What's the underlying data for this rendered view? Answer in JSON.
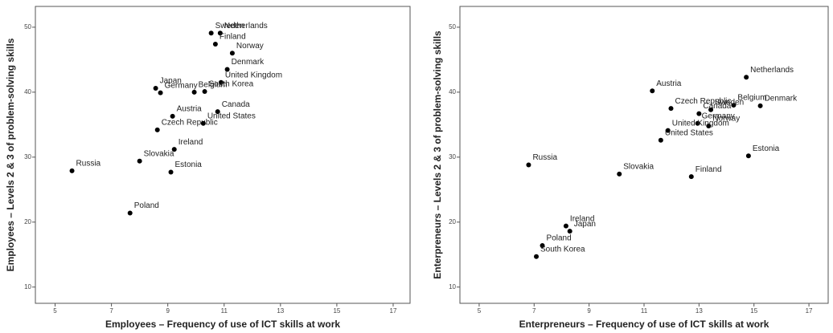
{
  "chart_data": [
    {
      "type": "scatter",
      "xlabel": "Employees – Frequency of use of ICT skills at work",
      "ylabel": "Employees – Levels 2 & 3 of problem-solving skills",
      "labels": [
        "Sweden",
        "Netherlands",
        "Finland",
        "Norway",
        "Denmark",
        "United Kingdom",
        "Japan",
        "Germany",
        "Belgium",
        "South Korea",
        "Austria",
        "Canada",
        "Czech Republic",
        "United States",
        "Ireland",
        "Estonia",
        "Slovakia",
        "Russia",
        "Poland"
      ],
      "x": [
        10.54,
        10.86,
        10.69,
        11.29,
        11.11,
        10.89,
        8.57,
        8.74,
        9.94,
        10.31,
        9.17,
        10.77,
        8.63,
        10.26,
        9.23,
        9.11,
        8.0,
        5.6,
        7.66
      ],
      "values": [
        49.1,
        49.1,
        47.4,
        46.0,
        43.5,
        41.5,
        40.6,
        39.9,
        40.0,
        40.1,
        36.3,
        37.0,
        34.2,
        35.2,
        31.2,
        27.7,
        29.4,
        27.9,
        21.4
      ],
      "color": "#000000",
      "xlim": [
        4.3,
        17.6
      ],
      "ylim": [
        7.5,
        53.2
      ],
      "xticks": [
        5,
        7,
        9,
        11,
        13,
        15,
        17
      ],
      "yticks": [
        10,
        20,
        30,
        40,
        50
      ]
    },
    {
      "type": "scatter",
      "xlabel": "Enterpreneurs – Frequency of use of ICT skills at work",
      "ylabel": "Enterpreneurs – Levels 2 & 3 of problem-solving skills",
      "labels": [
        "Netherlands",
        "Austria",
        "Czech Republic",
        "Belgium",
        "Denmark",
        "Sweden",
        "Canada",
        "Norway",
        "Germany",
        "United Kingdom",
        "United States",
        "Estonia",
        "Finland",
        "Slovakia",
        "Russia",
        "Ireland",
        "Japan",
        "Poland",
        "South Korea"
      ],
      "x": [
        14.72,
        11.3,
        11.98,
        14.26,
        15.23,
        13.43,
        13.0,
        13.35,
        12.95,
        11.87,
        11.61,
        14.8,
        12.72,
        10.1,
        6.8,
        8.16,
        8.3,
        7.3,
        7.08
      ],
      "values": [
        42.3,
        40.2,
        37.5,
        38.0,
        37.9,
        37.3,
        36.7,
        34.8,
        35.2,
        34.1,
        32.6,
        30.2,
        27.0,
        27.4,
        28.8,
        19.4,
        18.6,
        16.4,
        14.7
      ],
      "color": "#000000",
      "xlim": [
        4.3,
        17.7
      ],
      "ylim": [
        7.5,
        53.2
      ],
      "xticks": [
        5,
        7,
        9,
        11,
        13,
        15,
        17
      ],
      "yticks": [
        10,
        20,
        30,
        40,
        50
      ]
    }
  ]
}
